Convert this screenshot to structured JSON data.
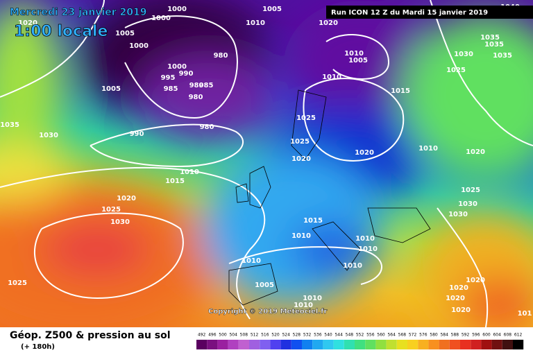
{
  "header": {
    "date": "Mercredi 23 janvier 2019",
    "time": "1:00 locale",
    "run": "Run ICON 12 Z du Mardi 15 janvier 2019"
  },
  "copyright": "Copyright © 2019 Meteociel.fr",
  "footer": {
    "title": "Géop. Z500 & pression au sol",
    "lead": "(+ 180h)"
  },
  "isobar_labels": [
    "1000",
    "1000",
    "1020",
    "1005",
    "1000",
    "980",
    "1000",
    "990",
    "995",
    "985",
    "980",
    "985",
    "980",
    "1005",
    "980",
    "990",
    "1035",
    "1030",
    "1005",
    "1010",
    "1020",
    "1010",
    "1005",
    "1010",
    "1015",
    "1025",
    "1025",
    "1020",
    "1020",
    "1010",
    "1020",
    "1035",
    "1035",
    "1035",
    "1030",
    "1025",
    "1040",
    "1010",
    "1015",
    "1020",
    "1025",
    "1030",
    "1025",
    "1015",
    "1010",
    "1010",
    "1010",
    "1010",
    "1005",
    "1010",
    "1010",
    "1010",
    "1025",
    "1030",
    "1030",
    "1020",
    "1020",
    "1020",
    "1020",
    "101"
  ],
  "colorbar": [
    492,
    496,
    500,
    504,
    508,
    512,
    516,
    520,
    524,
    528,
    532,
    536,
    540,
    544,
    548,
    552,
    556,
    560,
    564,
    568,
    572,
    576,
    580,
    584,
    588,
    592,
    596,
    600,
    604,
    608,
    612
  ]
}
